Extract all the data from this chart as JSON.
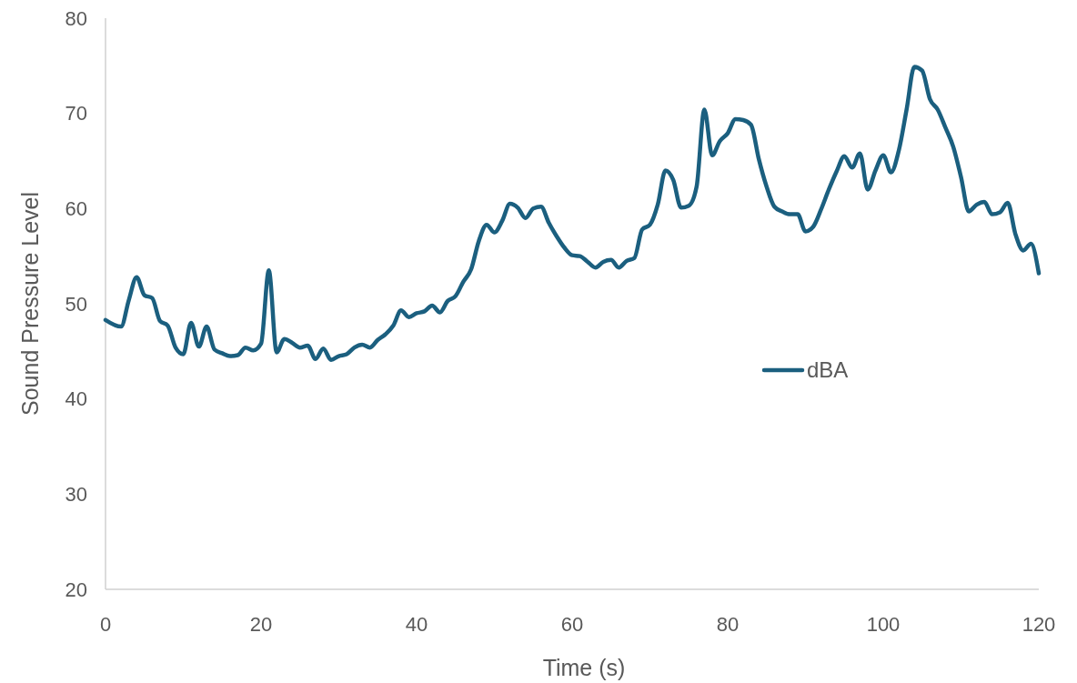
{
  "chart_data": {
    "type": "line",
    "xlabel": "Time (s)",
    "ylabel": "Sound Pressure Level",
    "x": [
      0,
      2,
      3,
      4,
      5,
      6,
      7,
      8,
      9,
      10,
      11,
      12,
      13,
      14,
      15,
      16,
      17,
      18,
      19,
      20,
      21,
      22,
      23,
      24,
      25,
      26,
      27,
      28,
      29,
      30,
      31,
      32,
      33,
      34,
      35,
      36,
      37,
      38,
      39,
      40,
      41,
      42,
      43,
      44,
      45,
      46,
      47,
      48,
      49,
      50,
      51,
      52,
      53,
      54,
      55,
      56,
      57,
      58,
      59,
      60,
      61,
      62,
      63,
      64,
      65,
      66,
      67,
      68,
      69,
      70,
      71,
      72,
      73,
      74,
      75,
      76,
      77,
      78,
      79,
      80,
      81,
      82,
      83,
      84,
      85,
      86,
      87,
      88,
      89,
      90,
      91,
      92,
      93,
      94,
      95,
      96,
      97,
      98,
      99,
      100,
      101,
      102,
      103,
      104,
      105,
      106,
      107,
      108,
      109,
      110,
      111,
      112,
      113,
      114,
      115,
      116,
      117,
      118,
      119,
      120
    ],
    "series": [
      {
        "name": "dBA",
        "color": "#1b5f7f",
        "values": [
          48.3,
          47.6,
          50.4,
          52.8,
          50.9,
          50.6,
          48.2,
          47.7,
          45.4,
          44.7,
          48.0,
          45.5,
          47.6,
          45.2,
          44.8,
          44.5,
          44.6,
          45.4,
          45.1,
          45.8,
          53.5,
          44.9,
          46.3,
          45.9,
          45.4,
          45.6,
          44.2,
          45.3,
          44.1,
          44.5,
          44.7,
          45.4,
          45.7,
          45.4,
          46.2,
          46.8,
          47.7,
          49.3,
          48.6,
          49.0,
          49.2,
          49.8,
          49.1,
          50.3,
          50.8,
          52.3,
          53.6,
          56.6,
          58.3,
          57.5,
          58.7,
          60.5,
          60.1,
          59.0,
          60.0,
          60.2,
          58.5,
          57.1,
          55.9,
          55.1,
          55.0,
          54.4,
          53.8,
          54.4,
          54.6,
          53.8,
          54.5,
          54.8,
          57.8,
          58.3,
          60.4,
          64.0,
          63.0,
          60.1,
          60.3,
          62.3,
          70.4,
          65.6,
          67.1,
          67.9,
          69.4,
          69.3,
          68.8,
          65.2,
          62.3,
          60.2,
          59.7,
          59.4,
          59.4,
          57.6,
          58.1,
          59.9,
          62.0,
          63.9,
          65.5,
          64.3,
          65.8,
          62.0,
          64.0,
          65.6,
          63.8,
          66.1,
          70.4,
          74.9,
          74.5,
          71.5,
          70.4,
          68.5,
          66.5,
          63.3,
          59.7,
          60.4,
          60.7,
          59.4,
          59.6,
          60.6,
          57.3,
          55.6,
          56.3,
          53.2
        ]
      }
    ],
    "xlim": [
      0,
      120
    ],
    "xticks": [
      0,
      20,
      40,
      60,
      80,
      100,
      120
    ],
    "ylim": [
      20,
      80
    ],
    "yticks": [
      20,
      30,
      40,
      50,
      60,
      70,
      80
    ],
    "legend": "right",
    "grid": false
  }
}
